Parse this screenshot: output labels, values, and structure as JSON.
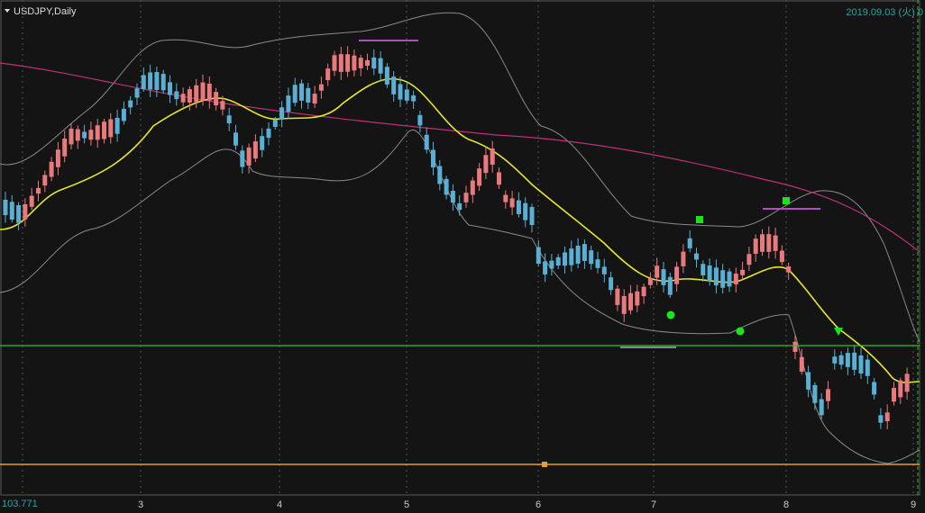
{
  "header": {
    "symbol": "USDJPY,Daily",
    "datetime": "2019.09.03 (火) 0"
  },
  "price_label": "103.771",
  "x_axis": {
    "labels": [
      "3",
      "4",
      "5",
      "6",
      "7",
      "8",
      "9"
    ]
  }
}
